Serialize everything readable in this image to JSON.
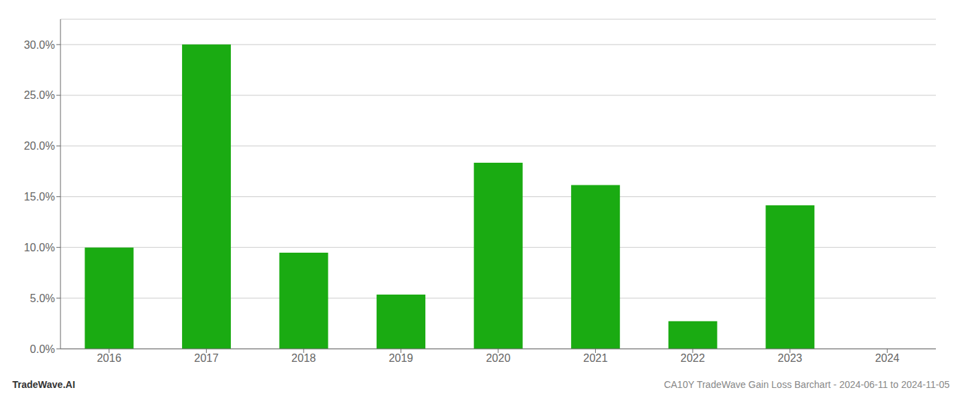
{
  "chart_data": {
    "type": "bar",
    "title": "CA10Y TradeWave Gain Loss Barchart - 2024-06-11 to 2024-11-05",
    "annotations": [
      "TradeWave.AI"
    ],
    "categories": [
      "2016",
      "2017",
      "2018",
      "2019",
      "2020",
      "2021",
      "2022",
      "2023",
      "2024"
    ],
    "values": [
      0.0998,
      0.3002,
      0.0948,
      0.0535,
      0.1835,
      0.1615,
      0.0272,
      0.1415,
      0.0
    ],
    "color": "#1aab12",
    "ylim": [
      0.0,
      0.325
    ],
    "yticks": [
      {
        "value": 0.0,
        "label": "0.0%"
      },
      {
        "value": 0.05,
        "label": "5.0%"
      },
      {
        "value": 0.1,
        "label": "10.0%"
      },
      {
        "value": 0.15,
        "label": "15.0%"
      },
      {
        "value": 0.2,
        "label": "20.0%"
      },
      {
        "value": 0.25,
        "label": "25.0%"
      },
      {
        "value": 0.3,
        "label": "30.0%"
      }
    ],
    "grid": true
  }
}
